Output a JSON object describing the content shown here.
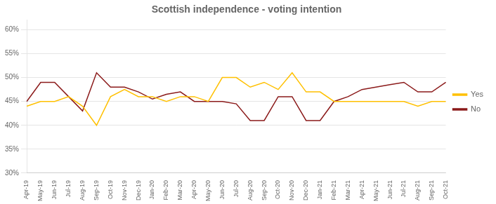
{
  "chart_data": {
    "type": "line",
    "title": "Scottish independence - voting intention",
    "categories": [
      "Apr-19",
      "May-19",
      "Jun-19",
      "Jul-19",
      "Aug-19",
      "Sep-19",
      "Oct-19",
      "Nov-19",
      "Dec-19",
      "Jan-20",
      "Feb-20",
      "Mar-20",
      "Apr-20",
      "May-20",
      "Jun-20",
      "Jul-20",
      "Aug-20",
      "Sep-20",
      "Oct-20",
      "Nov-20",
      "Dec-20",
      "Jan-21",
      "Feb-21",
      "Mar-21",
      "Apr-21",
      "May-21",
      "Jun-21",
      "Jul-21",
      "Aug-21",
      "Sep-21",
      "Oct-21"
    ],
    "series": [
      {
        "name": "Yes",
        "color": "#FFC000",
        "values": [
          44,
          45,
          45,
          46,
          44,
          40,
          46,
          47.5,
          46,
          46,
          45,
          46,
          46,
          45,
          50,
          50,
          48,
          49,
          47.5,
          51,
          47,
          47,
          45,
          45,
          45,
          45,
          45,
          45,
          44,
          45,
          45
        ]
      },
      {
        "name": "No",
        "color": "#8B1A1A",
        "values": [
          45,
          49,
          49,
          46,
          43,
          51,
          48,
          48,
          47,
          45.5,
          46.5,
          47,
          45,
          45,
          45,
          44.5,
          41,
          41,
          46,
          46,
          41,
          41,
          45,
          46,
          47.5,
          48,
          48.5,
          49,
          47,
          47,
          49
        ]
      }
    ],
    "ylim": [
      30,
      62
    ],
    "yticks": [
      {
        "value": 30,
        "label": "30%"
      },
      {
        "value": 35,
        "label": "35%"
      },
      {
        "value": 40,
        "label": "40%"
      },
      {
        "value": 45,
        "label": "45%"
      },
      {
        "value": 50,
        "label": "50%"
      },
      {
        "value": 55,
        "label": "55%"
      },
      {
        "value": 60,
        "label": "60%"
      }
    ],
    "grid": true,
    "legend": "right"
  }
}
